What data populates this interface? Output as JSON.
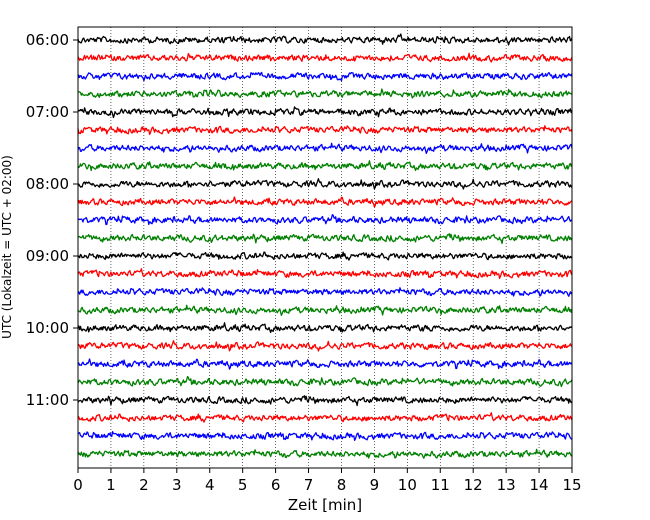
{
  "chart_data": {
    "type": "line",
    "title": "",
    "xlabel": "Zeit  [min]",
    "ylabel": "UTC (Lokalzeit = UTC + 02:00)",
    "xlim": [
      0,
      15
    ],
    "x_ticks": [
      "0",
      "1",
      "2",
      "3",
      "4",
      "5",
      "6",
      "7",
      "8",
      "9",
      "10",
      "11",
      "12",
      "13",
      "14",
      "15"
    ],
    "y_tick_labels": [
      "06:00",
      "07:00",
      "08:00",
      "09:00",
      "10:00",
      "11:00"
    ],
    "grid": "vertical dotted",
    "trace_interval_minutes": 15,
    "trace_start": "06:00",
    "trace_count": 24,
    "trace_colors": [
      "#000000",
      "#ff0000",
      "#0000ff",
      "#008000"
    ],
    "trace_amplitude": 0.25
  }
}
